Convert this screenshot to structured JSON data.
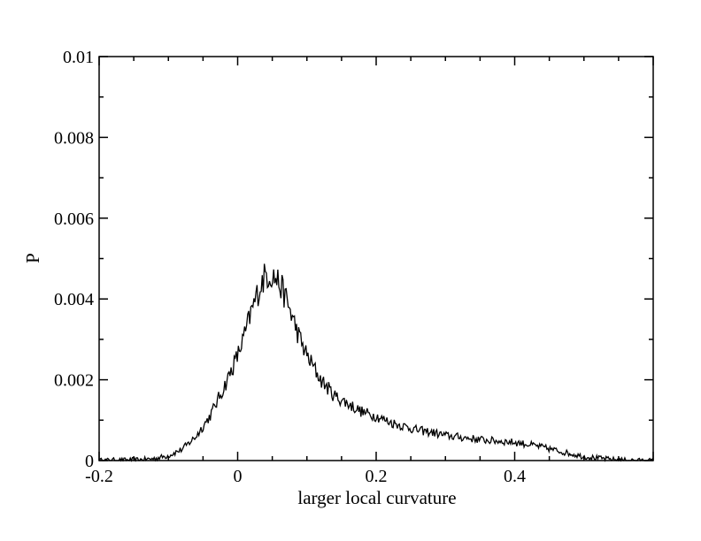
{
  "chart_data": {
    "type": "line",
    "title": "",
    "xlabel": "larger local curvature",
    "ylabel": "P",
    "xlim": [
      -0.2,
      0.6
    ],
    "ylim": [
      0,
      0.01
    ],
    "grid": false,
    "x_ticks": [
      -0.2,
      0,
      0.2,
      0.4
    ],
    "x_tick_labels": [
      "-0.2",
      "0",
      "0.2",
      "0.4"
    ],
    "y_ticks": [
      0,
      0.002,
      0.004,
      0.006,
      0.008,
      0.01
    ],
    "y_tick_labels": [
      "0",
      "0.002",
      "0.004",
      "0.006",
      "0.008",
      "0.01"
    ],
    "series": [
      {
        "color": "#000000",
        "points": [
          [
            -0.2,
            0.0
          ],
          [
            -0.18,
            1e-05
          ],
          [
            -0.16,
            1e-05
          ],
          [
            -0.14,
            2e-05
          ],
          [
            -0.12,
            5e-05
          ],
          [
            -0.1,
            0.00012
          ],
          [
            -0.08,
            0.00028
          ],
          [
            -0.06,
            0.0006
          ],
          [
            -0.04,
            0.0011
          ],
          [
            -0.02,
            0.0018
          ],
          [
            0.0,
            0.0026
          ],
          [
            0.01,
            0.0031
          ],
          [
            0.02,
            0.0037
          ],
          [
            0.03,
            0.0042
          ],
          [
            0.04,
            0.0046
          ],
          [
            0.05,
            0.0046
          ],
          [
            0.06,
            0.0044
          ],
          [
            0.07,
            0.004
          ],
          [
            0.08,
            0.0035
          ],
          [
            0.09,
            0.003
          ],
          [
            0.1,
            0.0026
          ],
          [
            0.12,
            0.002
          ],
          [
            0.14,
            0.0016
          ],
          [
            0.16,
            0.0014
          ],
          [
            0.18,
            0.0012
          ],
          [
            0.2,
            0.0011
          ],
          [
            0.22,
            0.00095
          ],
          [
            0.24,
            0.00085
          ],
          [
            0.26,
            0.00075
          ],
          [
            0.28,
            0.0007
          ],
          [
            0.3,
            0.00062
          ],
          [
            0.32,
            0.00058
          ],
          [
            0.34,
            0.00054
          ],
          [
            0.36,
            0.0005
          ],
          [
            0.38,
            0.00048
          ],
          [
            0.4,
            0.00045
          ],
          [
            0.42,
            0.0004
          ],
          [
            0.44,
            0.00033
          ],
          [
            0.46,
            0.00025
          ],
          [
            0.48,
            0.00017
          ],
          [
            0.5,
            0.0001
          ],
          [
            0.52,
            6e-05
          ],
          [
            0.54,
            3e-05
          ],
          [
            0.56,
            1e-05
          ],
          [
            0.58,
            0.0
          ],
          [
            0.6,
            0.0
          ]
        ]
      }
    ]
  }
}
